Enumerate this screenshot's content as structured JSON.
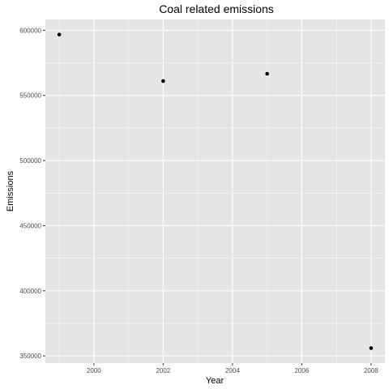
{
  "chart_data": {
    "type": "scatter",
    "title": "Coal related emissions",
    "xlabel": "Year",
    "ylabel": "Emissions",
    "x": [
      1999,
      2002,
      2005,
      2008
    ],
    "y": [
      596700,
      561000,
      566600,
      356000
    ],
    "xlim": [
      1998.6,
      2008.4
    ],
    "ylim": [
      344500,
      608300
    ],
    "x_ticks": [
      2000,
      2002,
      2004,
      2006,
      2008
    ],
    "y_ticks": [
      350000,
      400000,
      450000,
      500000,
      550000,
      600000
    ],
    "grid": true,
    "panel_background": "#e5e5e5",
    "grid_color": "#ffffff",
    "point_color": "#000000"
  }
}
